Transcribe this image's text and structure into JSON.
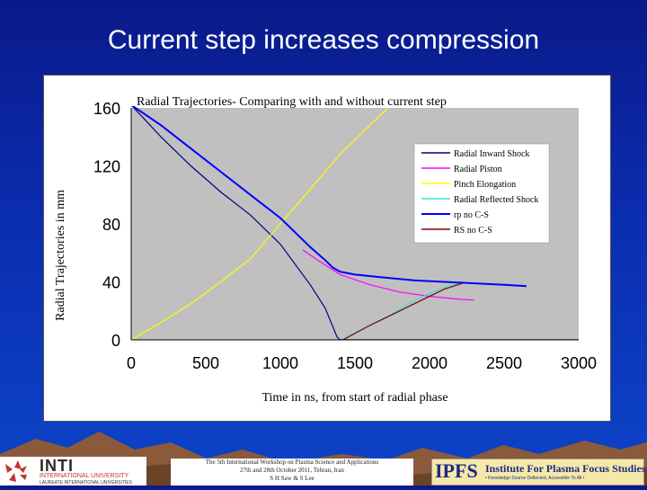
{
  "slide": {
    "title": "Current step increases compression"
  },
  "chart_data": {
    "type": "line",
    "title": "Radial Trajectories- Comparing with and without current step",
    "xlabel": "Time in ns, from start of radial phase",
    "ylabel": "Radial Trajectories in mm",
    "xlim": [
      0,
      3000
    ],
    "ylim": [
      0,
      160
    ],
    "x_ticks": [
      "0",
      "500",
      "1000",
      "1500",
      "2000",
      "2500",
      "3000"
    ],
    "y_ticks": [
      "0",
      "40",
      "80",
      "120",
      "160"
    ],
    "grid": false,
    "plot_background": "#c0c0c0",
    "legend_position": "right",
    "series": [
      {
        "name": "Radial Inward Shock",
        "color": "#000080",
        "points": [
          [
            0,
            162
          ],
          [
            200,
            140
          ],
          [
            400,
            120
          ],
          [
            600,
            102
          ],
          [
            800,
            86
          ],
          [
            1000,
            66
          ],
          [
            1200,
            38
          ],
          [
            1300,
            22
          ],
          [
            1380,
            2
          ],
          [
            1400,
            0
          ]
        ]
      },
      {
        "name": "Radial Piston",
        "color": "#ff00ff",
        "points": [
          [
            1150,
            62
          ],
          [
            1250,
            55
          ],
          [
            1400,
            45
          ],
          [
            1600,
            38
          ],
          [
            1800,
            33
          ],
          [
            2000,
            30
          ],
          [
            2200,
            28
          ],
          [
            2300,
            27.5
          ]
        ]
      },
      {
        "name": "Pinch Elongation",
        "color": "#ffff00",
        "points": [
          [
            0,
            0
          ],
          [
            200,
            12
          ],
          [
            400,
            25
          ],
          [
            600,
            40
          ],
          [
            800,
            56
          ],
          [
            1000,
            80
          ],
          [
            1200,
            104
          ],
          [
            1400,
            128
          ],
          [
            1600,
            148
          ],
          [
            1720,
            160
          ]
        ]
      },
      {
        "name": "Radial Reflected Shock",
        "color": "#40e0d0",
        "points": [
          [
            1400,
            0
          ],
          [
            1500,
            5
          ],
          [
            1600,
            10
          ],
          [
            1700,
            15
          ],
          [
            1800,
            21
          ],
          [
            1900,
            27
          ],
          [
            2000,
            32
          ],
          [
            2100,
            36
          ],
          [
            2200,
            39
          ]
        ]
      },
      {
        "name": "rp no C-S",
        "color": "#0000ff",
        "points": [
          [
            0,
            162
          ],
          [
            200,
            148
          ],
          [
            400,
            132
          ],
          [
            600,
            116
          ],
          [
            800,
            100
          ],
          [
            1000,
            84
          ],
          [
            1200,
            64
          ],
          [
            1300,
            55
          ],
          [
            1350,
            50
          ],
          [
            1400,
            47
          ],
          [
            1500,
            45
          ],
          [
            1700,
            43
          ],
          [
            1900,
            41
          ],
          [
            2100,
            40
          ],
          [
            2300,
            39
          ],
          [
            2500,
            38
          ],
          [
            2650,
            37
          ]
        ]
      },
      {
        "name": "RS no C-S",
        "color": "#800000",
        "points": [
          [
            1420,
            0
          ],
          [
            1600,
            10
          ],
          [
            1800,
            20
          ],
          [
            2000,
            30
          ],
          [
            2100,
            35
          ],
          [
            2220,
            39
          ]
        ]
      },
      {
        "name": "",
        "color": "#000000",
        "points": [
          [
            1400,
            0
          ],
          [
            3000,
            0
          ]
        ]
      }
    ]
  },
  "footer": {
    "inti": "INTI",
    "inti_line1": "INTERNATIONAL UNIVERSITY",
    "inti_line2": "LAUREATE INTERNATIONAL UNIVERSITIES",
    "note_line1": "The 5th International Workshop on Plasma Science and Applications",
    "note_line2": "27th and 28th October 2011, Tehran, Iran",
    "note_line3": "S H Saw & S Lee",
    "ipfs_abbr": "IPFS",
    "ipfs_name": "Institute For Plasma Focus Studies",
    "ipfs_tag": "• Knowledge Source Deflected, Accessible To All •"
  }
}
